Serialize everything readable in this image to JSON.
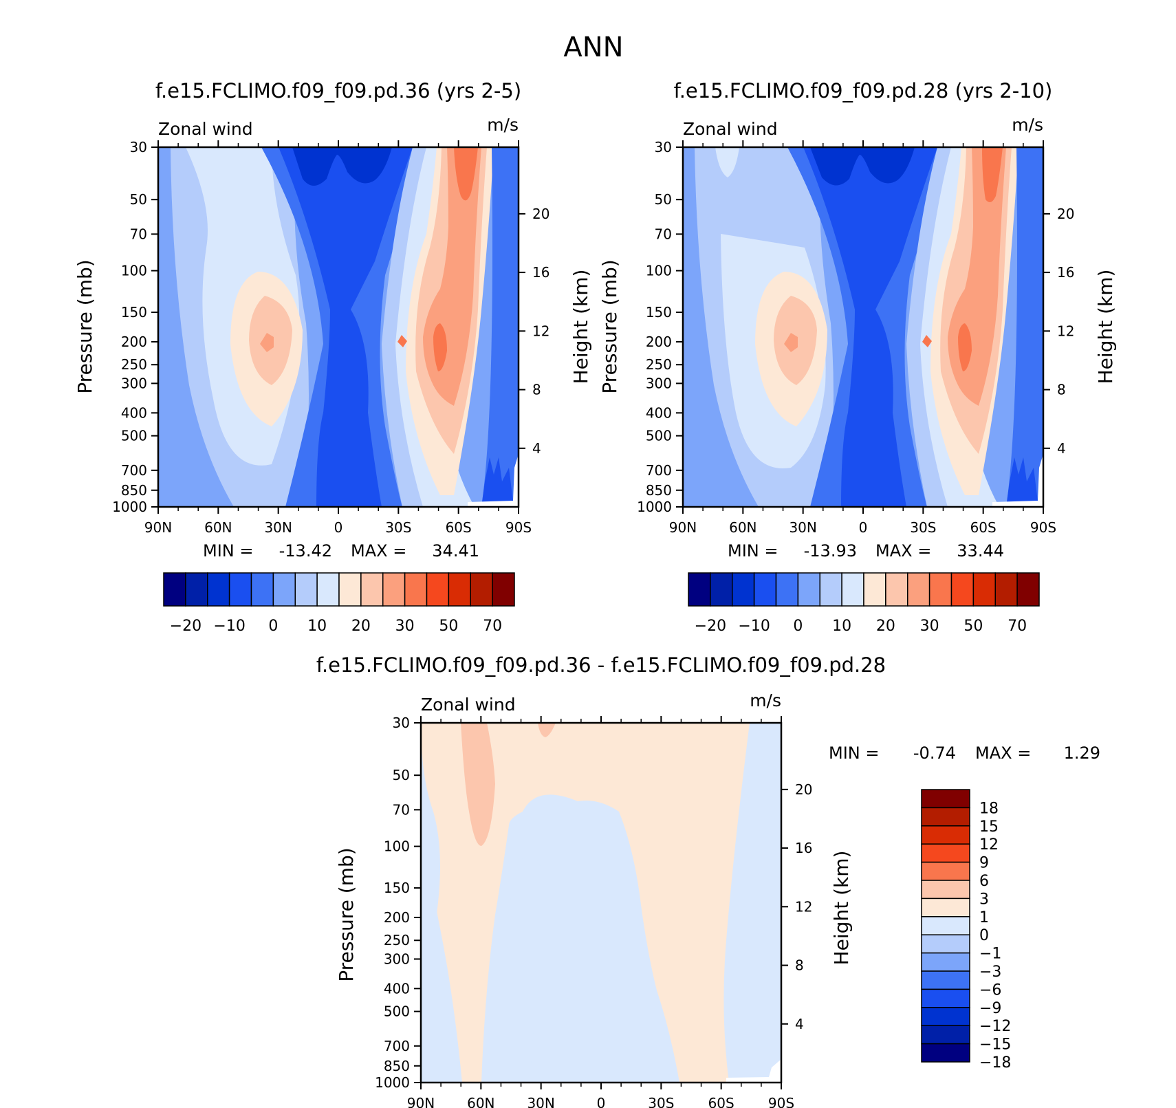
{
  "title": "ANN",
  "chart_data": [
    {
      "type": "heatmap",
      "title": "f.e15.FCLIMO.f09_f09.pd.36 (yrs 2-5)",
      "variable": "Zonal wind",
      "units": "m/s",
      "xlabel": "",
      "ylabel": "Pressure (mb)",
      "y2label": "Height (km)",
      "x_ticks": [
        "90N",
        "60N",
        "30N",
        "0",
        "30S",
        "60S",
        "90S"
      ],
      "y_ticks": [
        30,
        50,
        70,
        100,
        150,
        200,
        250,
        300,
        400,
        500,
        700,
        850,
        1000
      ],
      "y2_ticks": [
        20,
        16,
        12,
        8,
        4
      ],
      "ylim": [
        1000,
        30
      ],
      "stats": {
        "min_label": "MIN =",
        "min": "-13.42",
        "max_label": "MAX =",
        "max": "34.41"
      },
      "colorbar": {
        "orientation": "horizontal",
        "colors": [
          "#000080",
          "#0020a8",
          "#0033d0",
          "#1a4ff0",
          "#3d72f5",
          "#7ca5fa",
          "#b4ccfb",
          "#d9e8fd",
          "#fde8d6",
          "#fcc6ad",
          "#fba07e",
          "#f9764d",
          "#f5481e",
          "#d92c04",
          "#b31d00",
          "#800000"
        ],
        "labels": [
          "-20",
          "-10",
          "0",
          "10",
          "20",
          "30",
          "50",
          "70"
        ]
      }
    },
    {
      "type": "heatmap",
      "title": "f.e15.FCLIMO.f09_f09.pd.28 (yrs 2-10)",
      "variable": "Zonal wind",
      "units": "m/s",
      "xlabel": "",
      "ylabel": "Pressure (mb)",
      "y2label": "Height (km)",
      "x_ticks": [
        "90N",
        "60N",
        "30N",
        "0",
        "30S",
        "60S",
        "90S"
      ],
      "y_ticks": [
        30,
        50,
        70,
        100,
        150,
        200,
        250,
        300,
        400,
        500,
        700,
        850,
        1000
      ],
      "y2_ticks": [
        20,
        16,
        12,
        8,
        4
      ],
      "ylim": [
        1000,
        30
      ],
      "stats": {
        "min_label": "MIN =",
        "min": "-13.93",
        "max_label": "MAX =",
        "max": "33.44"
      },
      "colorbar": {
        "orientation": "horizontal",
        "colors": [
          "#000080",
          "#0020a8",
          "#0033d0",
          "#1a4ff0",
          "#3d72f5",
          "#7ca5fa",
          "#b4ccfb",
          "#d9e8fd",
          "#fde8d6",
          "#fcc6ad",
          "#fba07e",
          "#f9764d",
          "#f5481e",
          "#d92c04",
          "#b31d00",
          "#800000"
        ],
        "labels": [
          "-20",
          "-10",
          "0",
          "10",
          "20",
          "30",
          "50",
          "70"
        ]
      }
    },
    {
      "type": "heatmap",
      "title": "f.e15.FCLIMO.f09_f09.pd.36 - f.e15.FCLIMO.f09_f09.pd.28",
      "variable": "Zonal wind",
      "units": "m/s",
      "xlabel": "",
      "ylabel": "Pressure (mb)",
      "y2label": "Height (km)",
      "x_ticks": [
        "90N",
        "60N",
        "30N",
        "0",
        "30S",
        "60S",
        "90S"
      ],
      "y_ticks": [
        30,
        50,
        70,
        100,
        150,
        200,
        250,
        300,
        400,
        500,
        700,
        850,
        1000
      ],
      "y2_ticks": [
        20,
        16,
        12,
        8,
        4
      ],
      "ylim": [
        1000,
        30
      ],
      "stats": {
        "min_label": "MIN =",
        "min": "-0.74",
        "max_label": "MAX =",
        "max": "1.29"
      },
      "colorbar": {
        "orientation": "vertical",
        "colors": [
          "#800000",
          "#b31d00",
          "#d92c04",
          "#f5481e",
          "#f9764d",
          "#fcc6ad",
          "#fde8d6",
          "#d9e8fd",
          "#b4ccfb",
          "#7ca5fa",
          "#3d72f5",
          "#1a4ff0",
          "#0033d0",
          "#0020a8",
          "#000080"
        ],
        "labels": [
          "18",
          "15",
          "12",
          "9",
          "6",
          "3",
          "1",
          "0",
          "-1",
          "-3",
          "-6",
          "-9",
          "-12",
          "-15",
          "-18"
        ]
      }
    }
  ]
}
